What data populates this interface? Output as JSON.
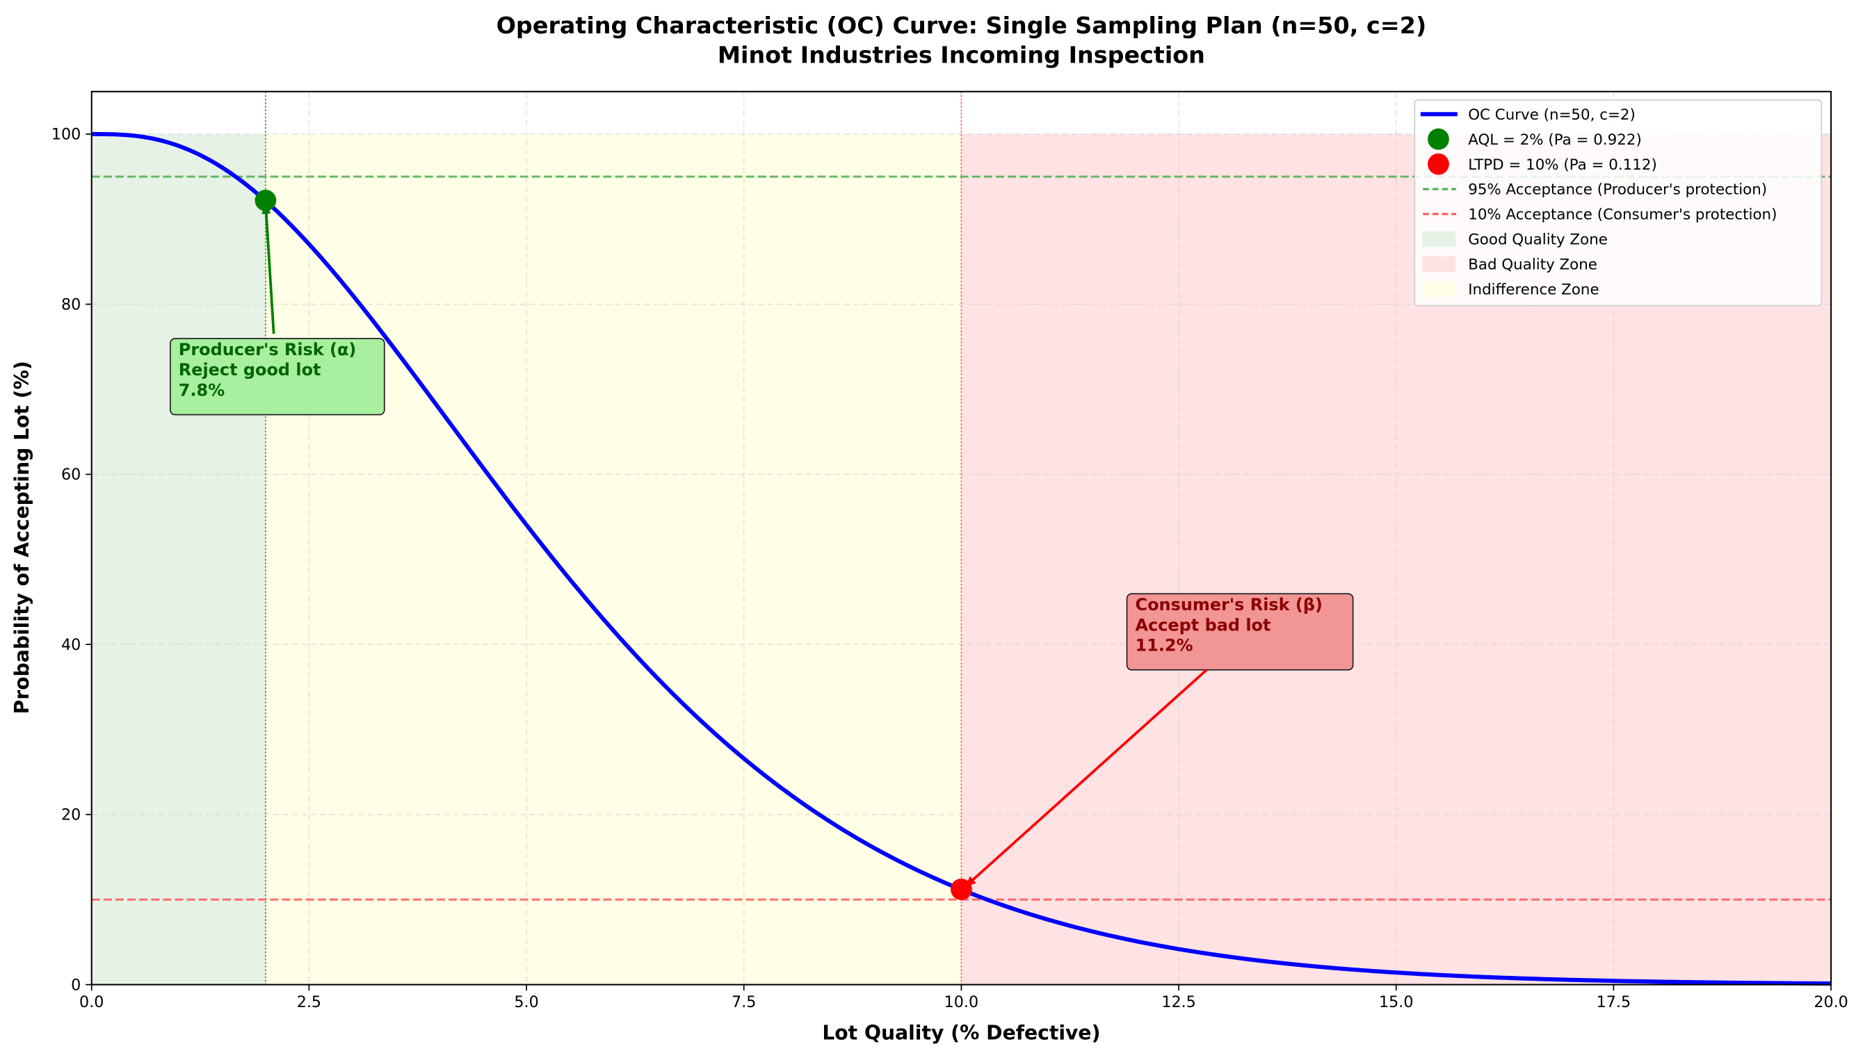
{
  "chart_data": {
    "type": "line",
    "title": "Operating Characteristic (OC) Curve: Single Sampling Plan (n=50, c=2)",
    "subtitle": "Minot Industries Incoming Inspection",
    "xlabel": "Lot Quality (% Defective)",
    "ylabel": "Probability of Accepting Lot (%)",
    "xlim": [
      0,
      20
    ],
    "ylim": [
      0,
      105
    ],
    "xticks": [
      "0.0",
      "2.5",
      "5.0",
      "7.5",
      "10.0",
      "12.5",
      "15.0",
      "17.5",
      "20.0"
    ],
    "xtick_values": [
      0,
      2.5,
      5,
      7.5,
      10,
      12.5,
      15,
      17.5,
      20
    ],
    "yticks": [
      "0",
      "20",
      "40",
      "60",
      "80",
      "100"
    ],
    "ytick_values": [
      0,
      20,
      40,
      60,
      80,
      100
    ],
    "grid": true,
    "legend_placement": "top-right",
    "sampling_plan": {
      "n": 50,
      "c": 2
    },
    "series": [
      {
        "name": "OC Curve (n=50, c=2)",
        "kind": "binomial-oc",
        "color": "#0000ff"
      }
    ],
    "points": [
      {
        "name": "AQL = 2% (Pa = 0.922)",
        "x": 2,
        "y": 92.2,
        "color": "#008000"
      },
      {
        "name": "LTPD = 10% (Pa = 0.112)",
        "x": 10,
        "y": 11.2,
        "color": "#ff0000"
      }
    ],
    "hlines": [
      {
        "name": "95% Acceptance (Producer's protection)",
        "y": 95,
        "color": "#4caf50"
      },
      {
        "name": "10% Acceptance (Consumer's protection)",
        "y": 10,
        "color": "#ff5555"
      }
    ],
    "vlines": [
      {
        "x": 2,
        "color": "#2ca02c"
      },
      {
        "x": 10,
        "color": "#ff6666"
      }
    ],
    "zones": [
      {
        "name": "Good Quality Zone",
        "x0": 0,
        "x1": 2,
        "y0": 0,
        "y1": 100,
        "color": "#e6f2e6"
      },
      {
        "name": "Bad Quality Zone",
        "x0": 10,
        "x1": 20,
        "y0": 0,
        "y1": 100,
        "color": "#ffe2e4"
      },
      {
        "name": "Indifference Zone",
        "x0": 2,
        "x1": 10,
        "y0": 0,
        "y1": 100,
        "color": "#fffee6"
      }
    ],
    "annotations": [
      {
        "lines": [
          "Producer's Risk (α)",
          "Reject good lot",
          "7.8%"
        ],
        "target_x": 2,
        "target_y": 92.2,
        "text_x": 1.0,
        "text_y": 74,
        "color": "#006400",
        "box": "#a8efa0"
      },
      {
        "lines": [
          "Consumer's Risk (β)",
          "Accept bad lot",
          "11.2%"
        ],
        "target_x": 10,
        "target_y": 11.2,
        "text_x": 12.0,
        "text_y": 44,
        "color": "#8b0000",
        "box": "#f29595"
      }
    ]
  }
}
